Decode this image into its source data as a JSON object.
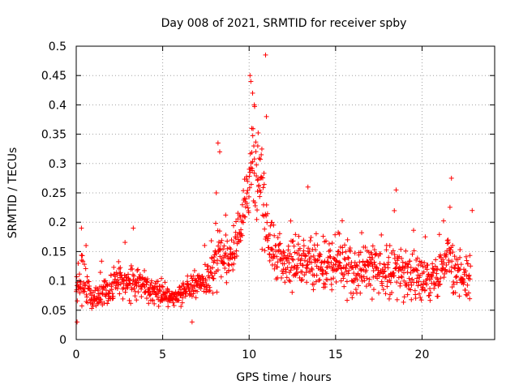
{
  "chart_data": {
    "type": "scatter",
    "title": "Day 008 of 2021, SRMTID for receiver spby",
    "xlabel": "GPS time / hours",
    "ylabel": "SRMTID / TECUs",
    "xlim": [
      0,
      24.2
    ],
    "ylim": [
      0,
      0.5
    ],
    "grid": true,
    "marker": "plus",
    "color": "#ff0000",
    "xticks": [
      0,
      5,
      10,
      15,
      20
    ],
    "xtick_labels": [
      "0",
      "5",
      "10",
      "15",
      "20"
    ],
    "yticks": [
      0,
      0.05,
      0.1,
      0.15,
      0.2,
      0.25,
      0.3,
      0.35,
      0.4,
      0.45,
      0.5
    ],
    "ytick_labels": [
      "0",
      "0.05",
      "0.1",
      "0.15",
      "0.2",
      "0.25",
      "0.3",
      "0.35",
      "0.4",
      "0.45",
      "0.5"
    ],
    "series": [
      {
        "name": "SRMTID",
        "trend": [
          {
            "x": 0.0,
            "y": 0.08,
            "spread": 0.035
          },
          {
            "x": 0.3,
            "y": 0.11,
            "spread": 0.05
          },
          {
            "x": 0.8,
            "y": 0.07,
            "spread": 0.02
          },
          {
            "x": 1.5,
            "y": 0.08,
            "spread": 0.03
          },
          {
            "x": 2.5,
            "y": 0.1,
            "spread": 0.03
          },
          {
            "x": 3.5,
            "y": 0.1,
            "spread": 0.035
          },
          {
            "x": 4.5,
            "y": 0.085,
            "spread": 0.025
          },
          {
            "x": 5.5,
            "y": 0.07,
            "spread": 0.015
          },
          {
            "x": 6.5,
            "y": 0.085,
            "spread": 0.025
          },
          {
            "x": 7.5,
            "y": 0.1,
            "spread": 0.03
          },
          {
            "x": 8.2,
            "y": 0.14,
            "spread": 0.06
          },
          {
            "x": 9.0,
            "y": 0.14,
            "spread": 0.035
          },
          {
            "x": 9.6,
            "y": 0.2,
            "spread": 0.06
          },
          {
            "x": 10.2,
            "y": 0.3,
            "spread": 0.09
          },
          {
            "x": 10.7,
            "y": 0.25,
            "spread": 0.08
          },
          {
            "x": 11.2,
            "y": 0.15,
            "spread": 0.05
          },
          {
            "x": 12.0,
            "y": 0.13,
            "spread": 0.045
          },
          {
            "x": 13.5,
            "y": 0.13,
            "spread": 0.05
          },
          {
            "x": 15.0,
            "y": 0.12,
            "spread": 0.05
          },
          {
            "x": 17.0,
            "y": 0.12,
            "spread": 0.05
          },
          {
            "x": 19.0,
            "y": 0.11,
            "spread": 0.04
          },
          {
            "x": 20.5,
            "y": 0.1,
            "spread": 0.035
          },
          {
            "x": 21.5,
            "y": 0.13,
            "spread": 0.05
          },
          {
            "x": 22.7,
            "y": 0.1,
            "spread": 0.04
          }
        ],
        "x_start": 0.0,
        "x_end": 22.8,
        "point_count": 1300,
        "outliers": [
          {
            "x": 10.05,
            "y": 0.45
          },
          {
            "x": 10.1,
            "y": 0.44
          },
          {
            "x": 10.2,
            "y": 0.42
          },
          {
            "x": 10.3,
            "y": 0.4
          },
          {
            "x": 10.15,
            "y": 0.36
          },
          {
            "x": 10.5,
            "y": 0.33
          },
          {
            "x": 10.95,
            "y": 0.485
          },
          {
            "x": 8.2,
            "y": 0.335
          },
          {
            "x": 8.3,
            "y": 0.32
          },
          {
            "x": 11.0,
            "y": 0.38
          },
          {
            "x": 21.7,
            "y": 0.275
          },
          {
            "x": 18.5,
            "y": 0.255
          },
          {
            "x": 13.4,
            "y": 0.26
          },
          {
            "x": 0.3,
            "y": 0.19
          },
          {
            "x": 3.3,
            "y": 0.19
          },
          {
            "x": 8.1,
            "y": 0.25
          },
          {
            "x": 22.9,
            "y": 0.22
          },
          {
            "x": 0.05,
            "y": 0.03
          },
          {
            "x": 6.7,
            "y": 0.03
          }
        ]
      }
    ]
  }
}
